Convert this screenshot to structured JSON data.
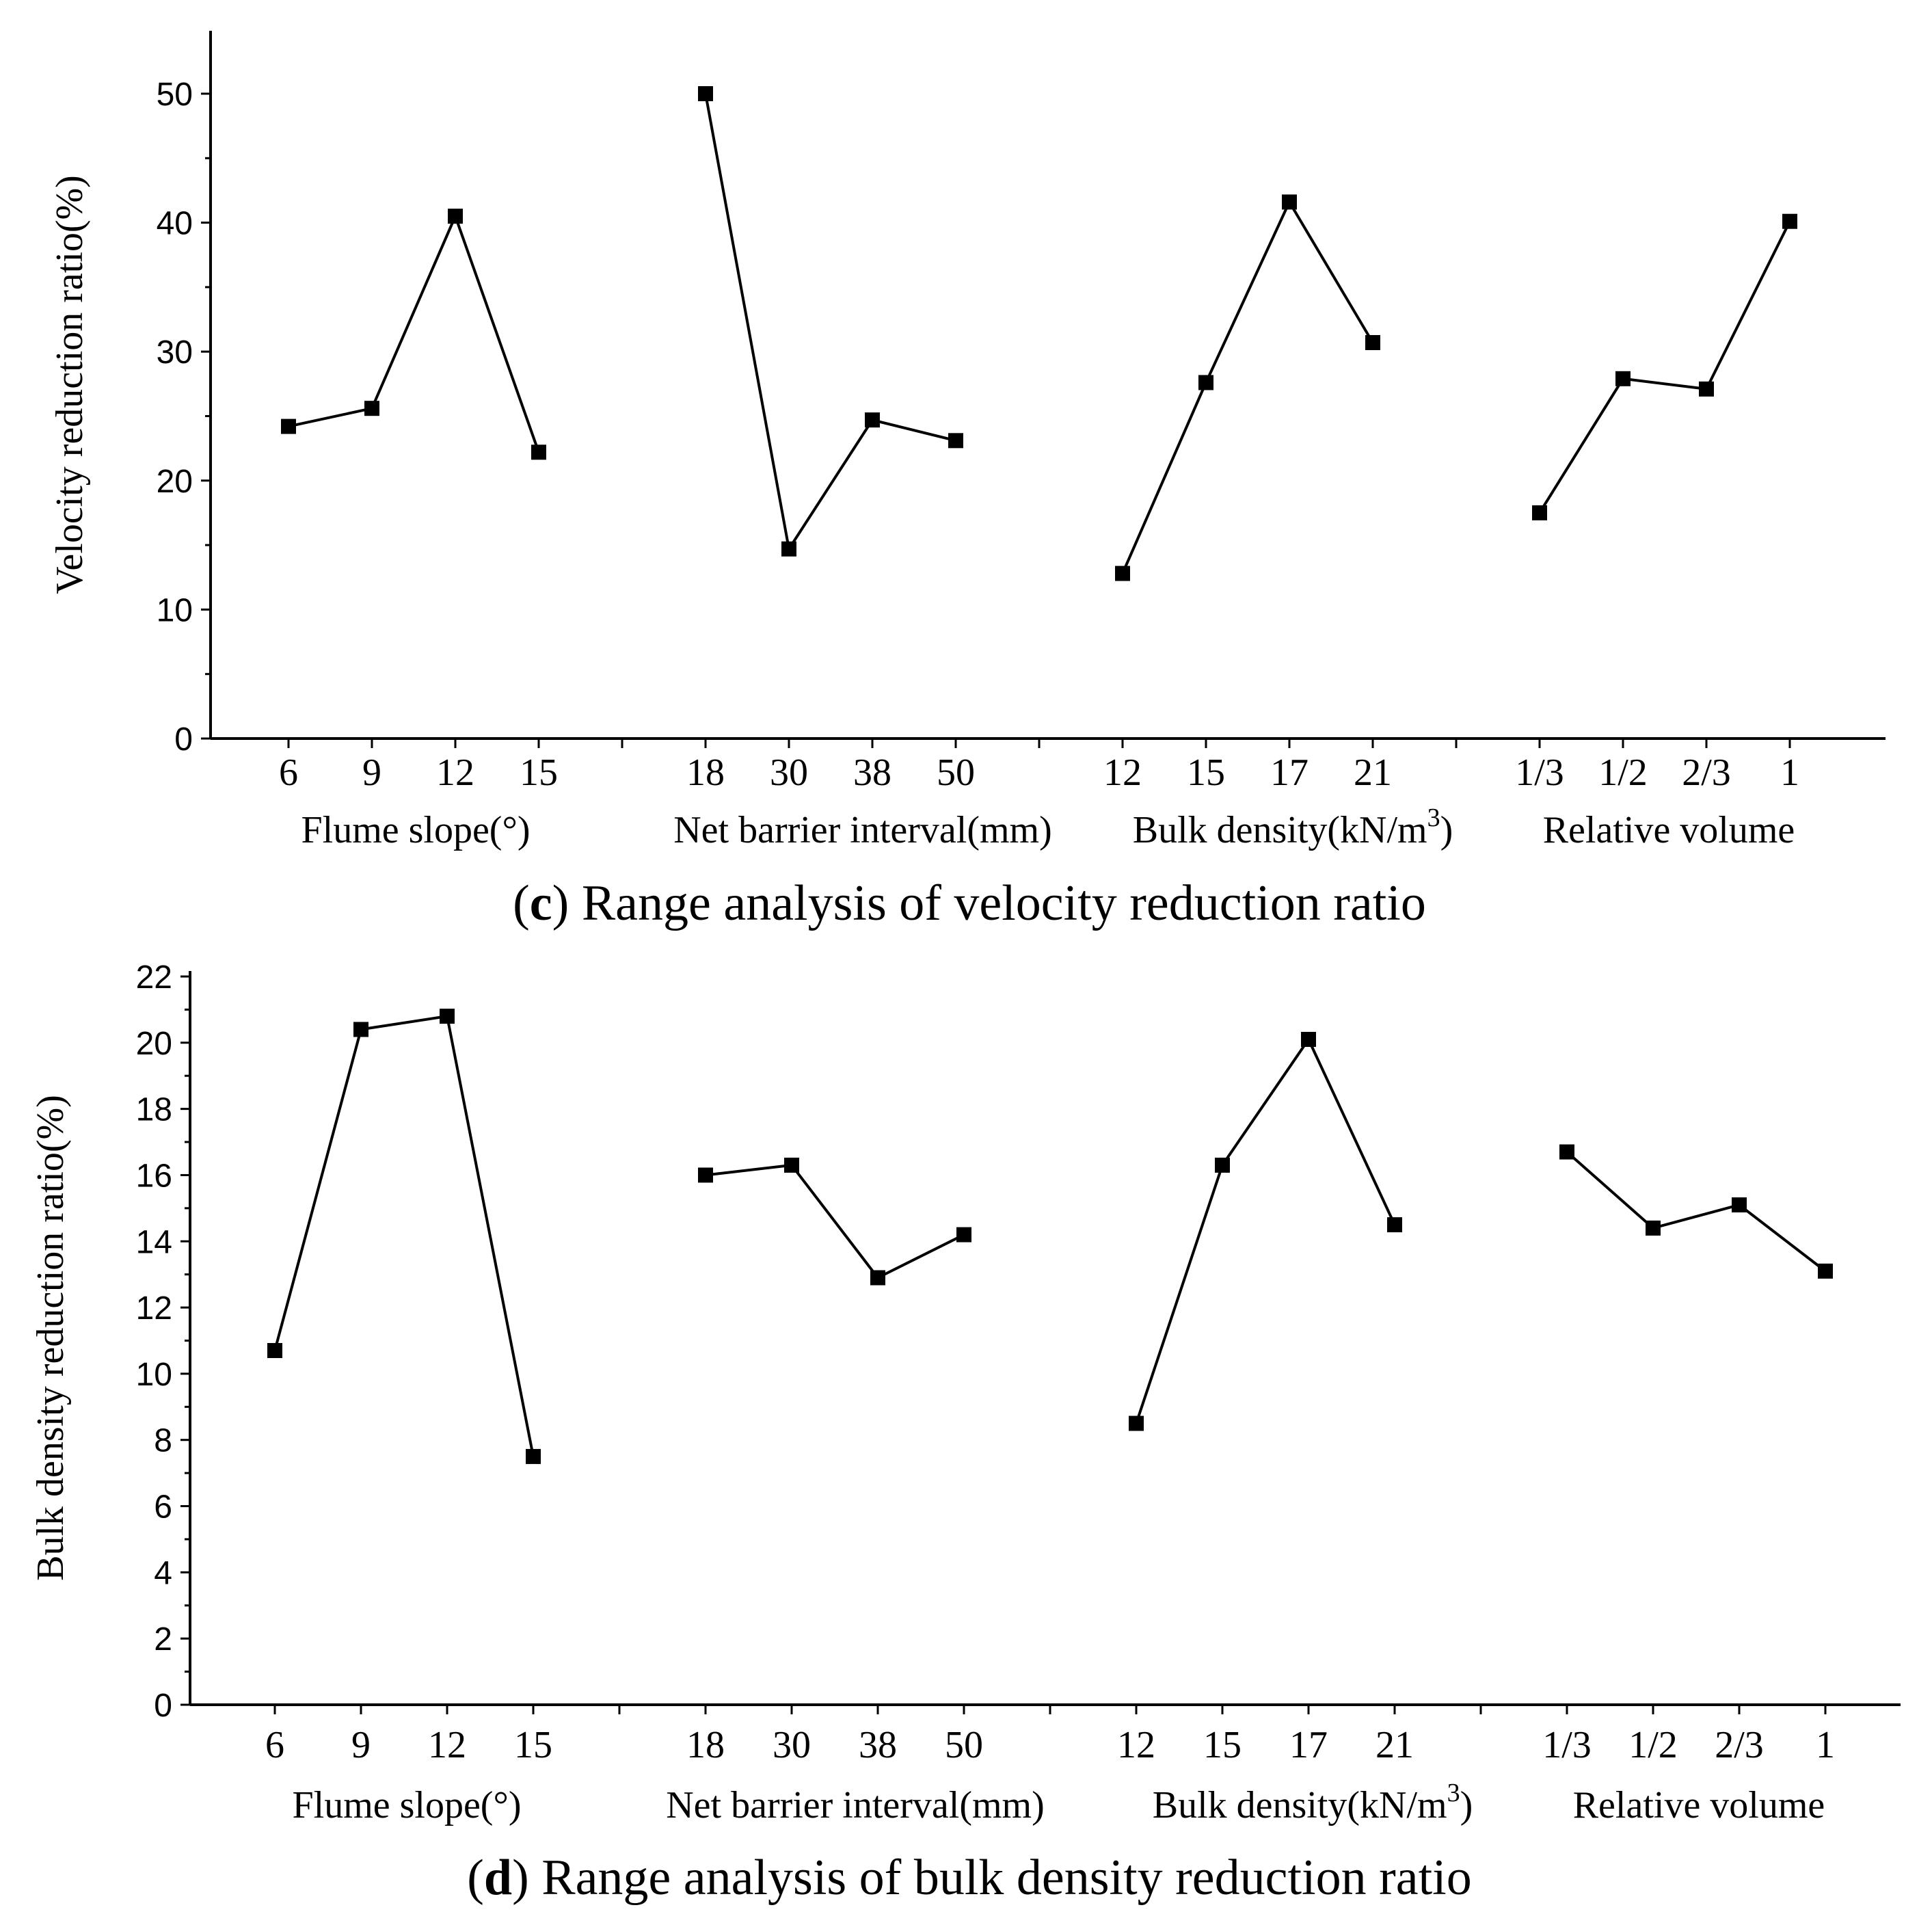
{
  "chart_data": [
    {
      "type": "line",
      "ylabel": "Velocity reduction ratio(%)",
      "caption": {
        "letter": "c",
        "text": "Range analysis of velocity reduction ratio"
      },
      "ylim": [
        0,
        55
      ],
      "yticks": [
        0,
        10,
        20,
        30,
        40,
        50
      ],
      "groups": [
        {
          "name": "Flume slope(°)",
          "label_pre": "Flume slope(°)",
          "label_sup": "",
          "label_post": "",
          "categories": [
            "6",
            "9",
            "12",
            "15"
          ],
          "values": [
            24.2,
            25.6,
            40.5,
            22.2
          ]
        },
        {
          "name": "Net barrier interval(mm)",
          "label_pre": "Net barrier interval(mm)",
          "label_sup": "",
          "label_post": "",
          "categories": [
            "18",
            "30",
            "38",
            "50"
          ],
          "values": [
            50.0,
            14.7,
            24.7,
            23.1
          ]
        },
        {
          "name": "Bulk density(kN/m3)",
          "label_pre": "Bulk density(kN/m",
          "label_sup": "3",
          "label_post": ")",
          "categories": [
            "12",
            "15",
            "17",
            "21"
          ],
          "values": [
            12.8,
            27.6,
            41.6,
            30.7
          ]
        },
        {
          "name": "Relative volume",
          "label_pre": "Relative volume",
          "label_sup": "",
          "label_post": "",
          "categories": [
            "1/3",
            "1/2",
            "2/3",
            "1"
          ],
          "values": [
            17.5,
            27.9,
            27.1,
            40.1
          ]
        }
      ]
    },
    {
      "type": "line",
      "ylabel": "Bulk density reduction ratio(%)",
      "caption": {
        "letter": "d",
        "text": "Range analysis of bulk density reduction ratio"
      },
      "ylim": [
        0,
        22
      ],
      "yticks": [
        0,
        2,
        4,
        6,
        8,
        10,
        12,
        14,
        16,
        18,
        20,
        22
      ],
      "groups": [
        {
          "name": "Flume slope(°)",
          "label_pre": "Flume slope(°)",
          "label_sup": "",
          "label_post": "",
          "categories": [
            "6",
            "9",
            "12",
            "15"
          ],
          "values": [
            10.7,
            20.4,
            20.8,
            7.5
          ]
        },
        {
          "name": "Net barrier interval(mm)",
          "label_pre": "Net barrier interval(mm)",
          "label_sup": "",
          "label_post": "",
          "categories": [
            "18",
            "30",
            "38",
            "50"
          ],
          "values": [
            16.0,
            16.3,
            12.9,
            14.2
          ]
        },
        {
          "name": "Bulk density(kN/m3)",
          "label_pre": "Bulk density(kN/m",
          "label_sup": "3",
          "label_post": ")",
          "categories": [
            "12",
            "15",
            "17",
            "21"
          ],
          "values": [
            8.5,
            16.3,
            20.1,
            14.5
          ]
        },
        {
          "name": "Relative volume",
          "label_pre": "Relative volume",
          "label_sup": "",
          "label_post": "",
          "categories": [
            "1/3",
            "1/2",
            "2/3",
            "1"
          ],
          "values": [
            16.7,
            14.4,
            15.1,
            13.1
          ]
        }
      ]
    }
  ]
}
